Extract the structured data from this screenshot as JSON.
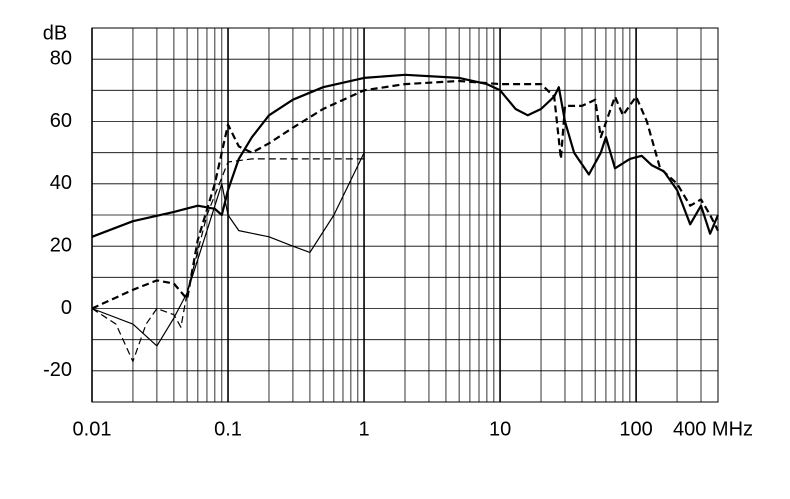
{
  "chart_data": {
    "type": "line",
    "ylabel": "dB",
    "log_x": true,
    "grid": true,
    "xlim": [
      0.01,
      400
    ],
    "ylim": [
      -30,
      90
    ],
    "xticks": [
      0.01,
      0.1,
      1,
      10,
      100,
      {
        "value": 400,
        "label": "400 MHz"
      }
    ],
    "xminor": [
      0.02,
      0.03,
      0.04,
      0.05,
      0.06,
      0.07,
      0.08,
      0.09,
      0.2,
      0.3,
      0.4,
      0.5,
      0.6,
      0.7,
      0.8,
      0.9,
      2,
      3,
      4,
      5,
      6,
      7,
      8,
      9,
      20,
      30,
      40,
      50,
      60,
      70,
      80,
      90,
      200,
      300
    ],
    "yticks": [
      -20,
      0,
      20,
      40,
      60,
      80
    ],
    "yminor": [
      -10,
      10,
      30,
      50,
      70,
      90
    ],
    "series": [
      {
        "color": "#000000",
        "width": 2.2,
        "dashed": false,
        "x": [
          0.01,
          0.02,
          0.04,
          0.06,
          0.08,
          0.09,
          0.1,
          0.12,
          0.15,
          0.2,
          0.3,
          0.5,
          1,
          2,
          5,
          8,
          10,
          13,
          16,
          20,
          25,
          27,
          30,
          35,
          45,
          55,
          60,
          70,
          90,
          110,
          130,
          160,
          200,
          250,
          300,
          350,
          400
        ],
        "values": [
          23,
          28,
          31,
          33,
          32,
          30,
          38,
          48,
          55,
          62,
          67,
          71,
          74,
          75,
          74,
          72,
          70,
          64,
          62,
          64,
          68,
          71,
          60,
          50,
          43,
          50,
          55,
          45,
          48,
          49,
          46,
          44,
          38,
          27,
          33,
          24,
          30
        ]
      },
      {
        "color": "#000000",
        "width": 2.2,
        "dashed": true,
        "x": [
          0.01,
          0.02,
          0.03,
          0.04,
          0.05,
          0.06,
          0.08,
          0.1,
          0.12,
          0.15,
          0.2,
          0.3,
          0.5,
          1,
          2,
          5,
          10,
          20,
          25,
          28,
          30,
          40,
          50,
          55,
          70,
          80,
          100,
          120,
          150,
          200,
          250,
          300,
          350,
          400
        ],
        "values": [
          0,
          6,
          9,
          8,
          3,
          22,
          40,
          59,
          52,
          50,
          53,
          58,
          64,
          70,
          72,
          73,
          72,
          72,
          68,
          48,
          65,
          65,
          67,
          55,
          68,
          62,
          68,
          60,
          45,
          40,
          33,
          35,
          30,
          25
        ]
      },
      {
        "color": "#000000",
        "width": 1.2,
        "dashed": false,
        "x": [
          0.01,
          0.02,
          0.03,
          0.04,
          0.05,
          0.07,
          0.09,
          0.1,
          0.12,
          0.2,
          0.3,
          0.4,
          0.6,
          1
        ],
        "values": [
          0,
          -5,
          -12,
          -3,
          5,
          25,
          40,
          30,
          25,
          23,
          20,
          18,
          30,
          50
        ]
      },
      {
        "color": "#000000",
        "width": 1.2,
        "dashed": true,
        "x": [
          0.01,
          0.015,
          0.02,
          0.025,
          0.03,
          0.04,
          0.045,
          0.05,
          0.07,
          0.1,
          0.15,
          0.3,
          0.5,
          1
        ],
        "values": [
          0,
          -5,
          -17,
          -5,
          0,
          -2,
          -6,
          5,
          30,
          47,
          48,
          48,
          48,
          48
        ]
      }
    ]
  }
}
